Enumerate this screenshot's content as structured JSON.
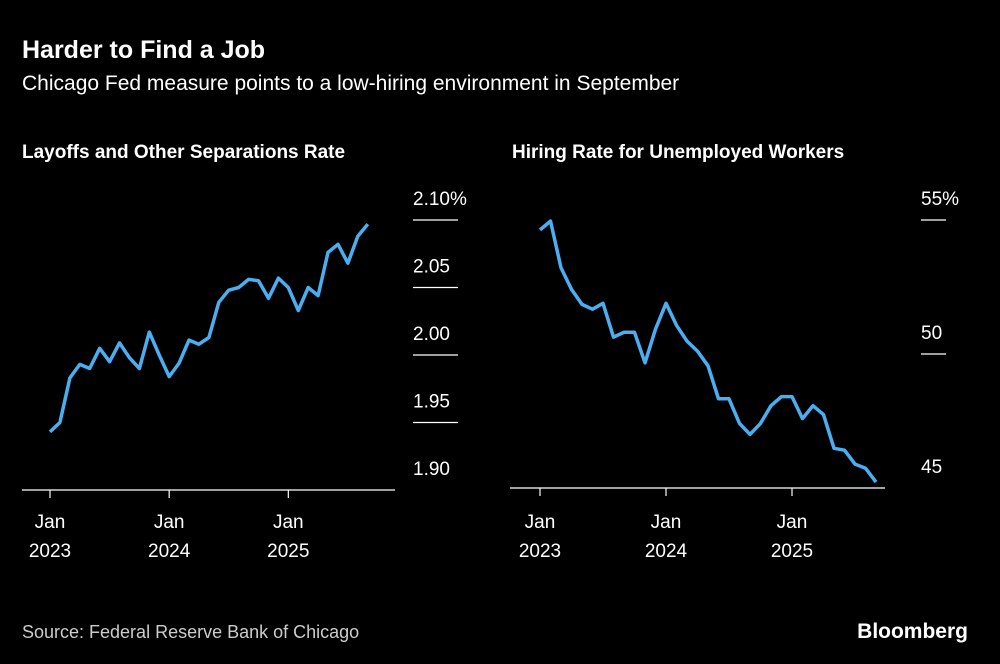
{
  "title": "Harder to Find a Job",
  "subtitle": "Chicago Fed measure points to a low-hiring environment in September",
  "source": "Source: Federal Reserve Bank of Chicago",
  "brand": "Bloomberg",
  "chart_data": [
    {
      "type": "line",
      "title": "Layoffs and Other Separations Rate",
      "color": "#4aaef0",
      "x": [
        "2023-01",
        "2023-02",
        "2023-03",
        "2023-04",
        "2023-05",
        "2023-06",
        "2023-07",
        "2023-08",
        "2023-09",
        "2023-10",
        "2023-11",
        "2023-12",
        "2024-01",
        "2024-02",
        "2024-03",
        "2024-04",
        "2024-05",
        "2024-06",
        "2024-07",
        "2024-08",
        "2024-09",
        "2024-10",
        "2024-11",
        "2024-12",
        "2025-01",
        "2025-02",
        "2025-03",
        "2025-04",
        "2025-05",
        "2025-06",
        "2025-07",
        "2025-08",
        "2025-09"
      ],
      "values": [
        1.943,
        1.95,
        1.983,
        1.993,
        1.99,
        2.005,
        1.995,
        2.009,
        1.998,
        1.99,
        2.017,
        2.0,
        1.984,
        1.994,
        2.011,
        2.008,
        2.013,
        2.039,
        2.048,
        2.05,
        2.056,
        2.055,
        2.042,
        2.057,
        2.05,
        2.033,
        2.05,
        2.044,
        2.076,
        2.082,
        2.068,
        2.088,
        2.097
      ],
      "ylim": [
        1.9,
        2.1
      ],
      "yticks": [
        {
          "value": 1.9,
          "label": "1.90"
        },
        1.95,
        {
          "value": 2.0,
          "label": "2.00"
        },
        2.05,
        {
          "value": 2.1,
          "label": "2.10%"
        }
      ],
      "xticks": [
        {
          "value": "2023-01",
          "label": "Jan 2023"
        },
        {
          "value": "2024-01",
          "label": "Jan 2024"
        },
        {
          "value": "2025-01",
          "label": "Jan 2025"
        }
      ]
    },
    {
      "type": "line",
      "title": "Hiring Rate for Unemployed Workers",
      "color": "#4aaef0",
      "x": [
        "2023-01",
        "2023-02",
        "2023-03",
        "2023-04",
        "2023-05",
        "2023-06",
        "2023-07",
        "2023-08",
        "2023-09",
        "2023-10",
        "2023-11",
        "2023-12",
        "2024-01",
        "2024-02",
        "2024-03",
        "2024-04",
        "2024-05",
        "2024-06",
        "2024-07",
        "2024-08",
        "2024-09",
        "2024-10",
        "2024-11",
        "2024-12",
        "2025-01",
        "2025-02",
        "2025-03",
        "2025-04",
        "2025-05",
        "2025-06",
        "2025-07",
        "2025-08",
        "2025-09"
      ],
      "values": [
        54.63,
        54.96,
        53.22,
        52.41,
        51.85,
        51.67,
        51.89,
        50.63,
        50.81,
        50.81,
        49.67,
        50.93,
        51.89,
        51.07,
        50.48,
        50.11,
        49.56,
        48.33,
        48.33,
        47.41,
        47.0,
        47.41,
        48.07,
        48.41,
        48.41,
        47.59,
        48.07,
        47.74,
        46.48,
        46.41,
        45.89,
        45.74,
        45.22
      ],
      "ylim": [
        45,
        55
      ],
      "yticks": [
        45,
        50,
        {
          "value": 55,
          "label": "55%"
        }
      ],
      "xticks": [
        {
          "value": "2023-01",
          "label": "Jan 2023"
        },
        {
          "value": "2024-01",
          "label": "Jan 2024"
        },
        {
          "value": "2025-01",
          "label": "Jan 2025"
        }
      ]
    }
  ]
}
